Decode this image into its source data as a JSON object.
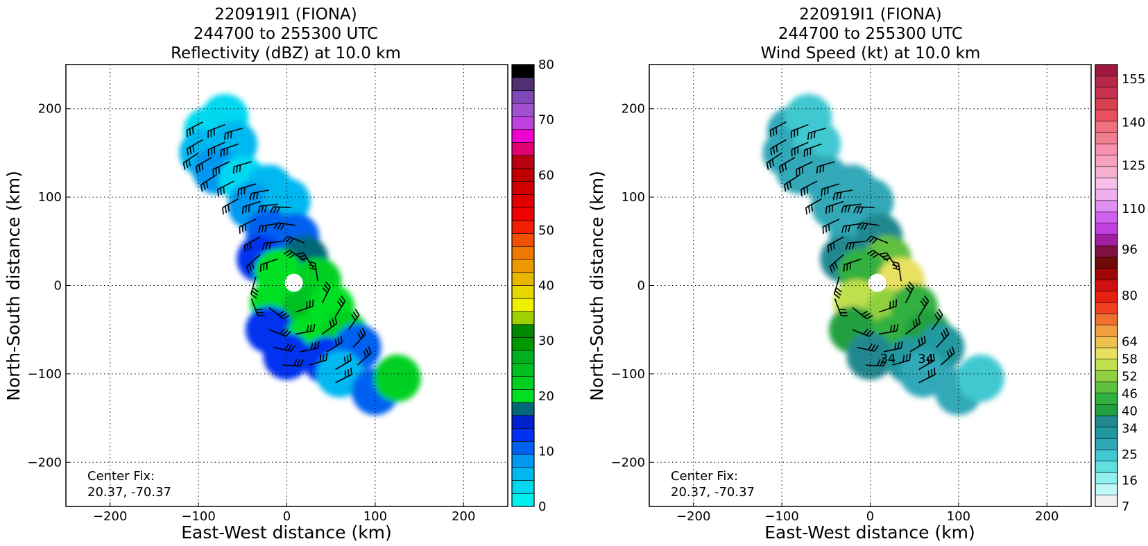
{
  "chart_data": [
    {
      "type": "heatmap",
      "title_lines": [
        "220919I1 (FIONA)",
        "244700 to 255300 UTC",
        "Reflectivity (dBZ) at 10.0 km"
      ],
      "xlabel": "East-West distance (km)",
      "ylabel": "North-South distance (km)",
      "xlim": [
        -250,
        250
      ],
      "ylim": [
        -250,
        250
      ],
      "xticks": [
        -200,
        -100,
        0,
        100,
        200
      ],
      "yticks": [
        -200,
        -100,
        0,
        100,
        200
      ],
      "grid": true,
      "grid_style": "dotted",
      "annotation_lines": [
        "Center Fix:",
        "20.37, -70.37"
      ],
      "field_units": "dBZ",
      "overlay": "wind barbs",
      "colorbar": {
        "min": 0,
        "max": 80,
        "tick_values": [
          0,
          10,
          20,
          30,
          40,
          50,
          60,
          70,
          80
        ],
        "tick_labels": [
          "0",
          "10",
          "20",
          "30",
          "40",
          "50",
          "60",
          "70",
          "80"
        ],
        "colors": [
          "#00f0f0",
          "#00d8f0",
          "#00b8f0",
          "#0098f0",
          "#0060f0",
          "#0030f0",
          "#0020d0",
          "#006878",
          "#00e020",
          "#00d020",
          "#00c020",
          "#00b020",
          "#009800",
          "#008800",
          "#a0d000",
          "#f0f000",
          "#e8d800",
          "#e8b800",
          "#f09800",
          "#f07800",
          "#f05000",
          "#f02000",
          "#f00000",
          "#e00000",
          "#d00000",
          "#c00000",
          "#b80010",
          "#e00070",
          "#f000d0",
          "#c040e0",
          "#a050d0",
          "#8048b8",
          "#503070",
          "#000000"
        ]
      },
      "field_cells": [
        {
          "x": -90,
          "y": 175,
          "v": 4
        },
        {
          "x": -70,
          "y": 190,
          "v": 3
        },
        {
          "x": -95,
          "y": 150,
          "v": 5
        },
        {
          "x": -60,
          "y": 160,
          "v": 6
        },
        {
          "x": -80,
          "y": 130,
          "v": 8
        },
        {
          "x": -50,
          "y": 120,
          "v": 4
        },
        {
          "x": -20,
          "y": 110,
          "v": 6
        },
        {
          "x": -40,
          "y": 90,
          "v": 9
        },
        {
          "x": 0,
          "y": 95,
          "v": 7
        },
        {
          "x": -20,
          "y": 60,
          "v": 10
        },
        {
          "x": 10,
          "y": 55,
          "v": 11
        },
        {
          "x": -30,
          "y": 30,
          "v": 12
        },
        {
          "x": 20,
          "y": 30,
          "v": 18
        },
        {
          "x": -10,
          "y": 15,
          "v": 20
        },
        {
          "x": 35,
          "y": 5,
          "v": 22
        },
        {
          "x": -15,
          "y": -20,
          "v": 19
        },
        {
          "x": 20,
          "y": -30,
          "v": 24
        },
        {
          "x": 50,
          "y": -25,
          "v": 21
        },
        {
          "x": -20,
          "y": -50,
          "v": 13
        },
        {
          "x": 25,
          "y": -60,
          "v": 20
        },
        {
          "x": 65,
          "y": -55,
          "v": 23
        },
        {
          "x": 0,
          "y": -80,
          "v": 12
        },
        {
          "x": 45,
          "y": -85,
          "v": 14
        },
        {
          "x": 80,
          "y": -70,
          "v": 10
        },
        {
          "x": 60,
          "y": -100,
          "v": 5
        },
        {
          "x": 100,
          "y": -120,
          "v": 11
        },
        {
          "x": 125,
          "y": -105,
          "v": 22
        }
      ]
    },
    {
      "type": "heatmap",
      "title_lines": [
        "220919I1 (FIONA)",
        "244700 to 255300 UTC",
        "Wind Speed (kt) at 10.0 km"
      ],
      "xlabel": "East-West distance (km)",
      "ylabel": "North-South distance (km)",
      "xlim": [
        -250,
        250
      ],
      "ylim": [
        -250,
        250
      ],
      "xticks": [
        -200,
        -100,
        0,
        100,
        200
      ],
      "yticks": [
        -200,
        -100,
        0,
        100,
        200
      ],
      "grid": true,
      "grid_style": "dotted",
      "annotation_lines": [
        "Center Fix:",
        "20.37, -70.37"
      ],
      "field_units": "kt",
      "overlay": "wind barbs",
      "contour_labels": [
        {
          "text": "34",
          "x": 20,
          "y": -83
        },
        {
          "text": "34",
          "x": 63,
          "y": -83
        }
      ],
      "colorbar": {
        "min": 7,
        "max": 160,
        "tick_values": [
          7,
          16,
          25,
          34,
          40,
          46,
          52,
          58,
          64,
          80,
          96,
          110,
          125,
          140,
          155
        ],
        "tick_labels": [
          "7",
          "16",
          "25",
          "34",
          "40",
          "46",
          "52",
          "58",
          "64",
          "80",
          "96",
          "110",
          "125",
          "140",
          "155"
        ],
        "colors": [
          "#f0f0f0",
          "#c0f8f8",
          "#90f0f0",
          "#60e0e0",
          "#40c8d0",
          "#30a8b8",
          "#2098a0",
          "#208890",
          "#20a040",
          "#30b040",
          "#60c040",
          "#90d040",
          "#c0e050",
          "#e8e060",
          "#f0c050",
          "#f0a040",
          "#f07030",
          "#f04020",
          "#e82010",
          "#d01010",
          "#a00808",
          "#700808",
          "#801040",
          "#a020a0",
          "#c040e0",
          "#d060f0",
          "#e090f0",
          "#f0b0f0",
          "#f8c0e8",
          "#f8b0d0",
          "#f8a0c0",
          "#f890b0",
          "#f08090",
          "#f07080",
          "#e85060",
          "#d84050",
          "#c83050",
          "#b82848",
          "#a01840"
        ]
      },
      "field_cells": [
        {
          "x": -90,
          "y": 175,
          "v": 27
        },
        {
          "x": -70,
          "y": 190,
          "v": 25
        },
        {
          "x": -95,
          "y": 150,
          "v": 27
        },
        {
          "x": -60,
          "y": 160,
          "v": 26
        },
        {
          "x": -80,
          "y": 130,
          "v": 28
        },
        {
          "x": -50,
          "y": 120,
          "v": 27
        },
        {
          "x": -20,
          "y": 110,
          "v": 28
        },
        {
          "x": -40,
          "y": 90,
          "v": 27
        },
        {
          "x": 0,
          "y": 95,
          "v": 30
        },
        {
          "x": -20,
          "y": 60,
          "v": 28
        },
        {
          "x": 10,
          "y": 55,
          "v": 36
        },
        {
          "x": -30,
          "y": 30,
          "v": 37
        },
        {
          "x": 20,
          "y": 30,
          "v": 48
        },
        {
          "x": -10,
          "y": 15,
          "v": 45
        },
        {
          "x": 35,
          "y": 5,
          "v": 58
        },
        {
          "x": -15,
          "y": -20,
          "v": 55
        },
        {
          "x": 20,
          "y": -30,
          "v": 52
        },
        {
          "x": 50,
          "y": -25,
          "v": 46
        },
        {
          "x": -20,
          "y": -50,
          "v": 42
        },
        {
          "x": 25,
          "y": -60,
          "v": 43
        },
        {
          "x": 65,
          "y": -55,
          "v": 40
        },
        {
          "x": 0,
          "y": -80,
          "v": 36
        },
        {
          "x": 45,
          "y": -85,
          "v": 34
        },
        {
          "x": 80,
          "y": -70,
          "v": 33
        },
        {
          "x": 60,
          "y": -100,
          "v": 28
        },
        {
          "x": 100,
          "y": -120,
          "v": 27
        },
        {
          "x": 125,
          "y": -105,
          "v": 26
        }
      ]
    }
  ]
}
